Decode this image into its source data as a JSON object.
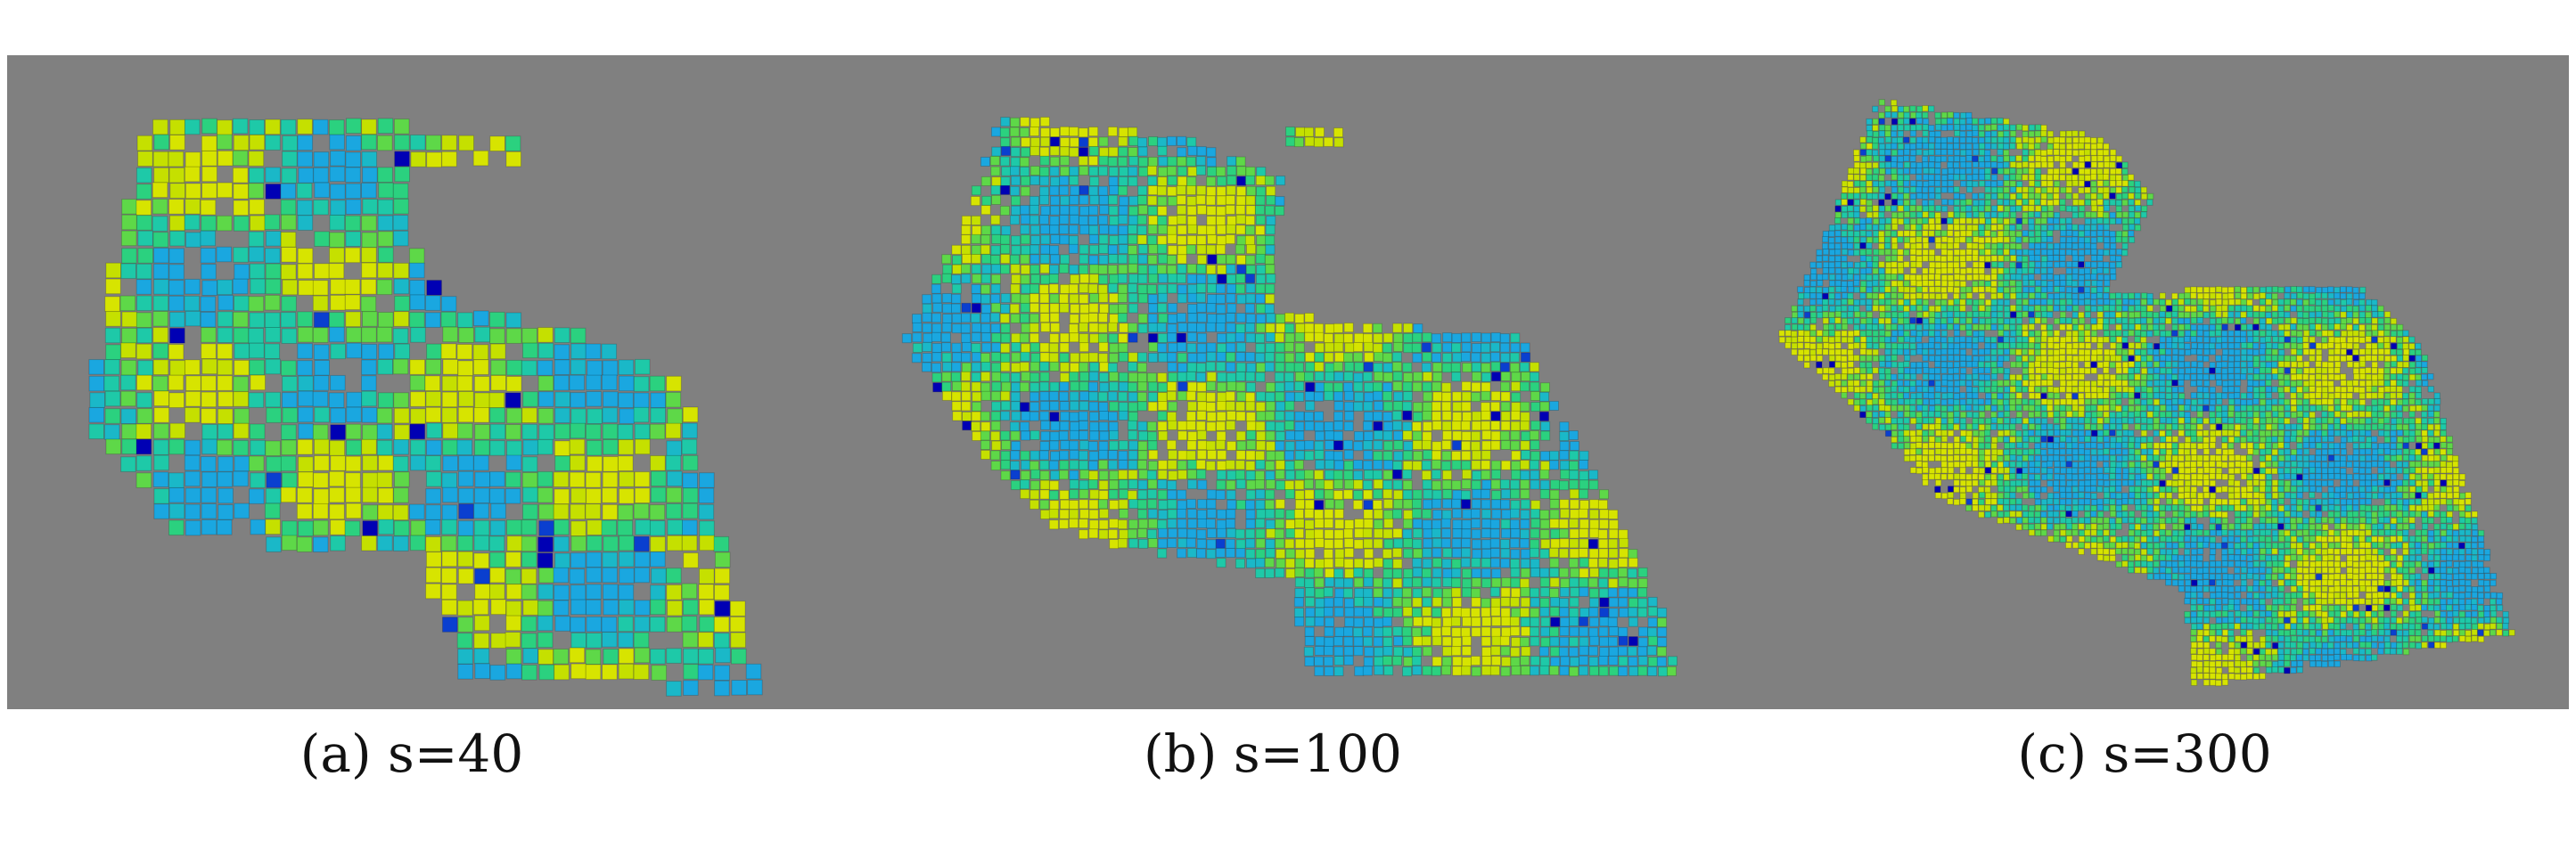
{
  "figure": {
    "subfigures": [
      {
        "id": "a",
        "caption": "(a) s=40"
      },
      {
        "id": "b",
        "caption": "(b) s=100"
      },
      {
        "id": "c",
        "caption": "(c) s=300"
      }
    ],
    "colors": {
      "background": "#808080",
      "voxel_palette": [
        "#d7e400",
        "#c5e000",
        "#9ee000",
        "#5ed848",
        "#2bd17f",
        "#1ec9a8",
        "#1ab8c8",
        "#1aa7e0",
        "#1c8fe0",
        "#0a3fcf",
        "#0000b4"
      ]
    }
  }
}
